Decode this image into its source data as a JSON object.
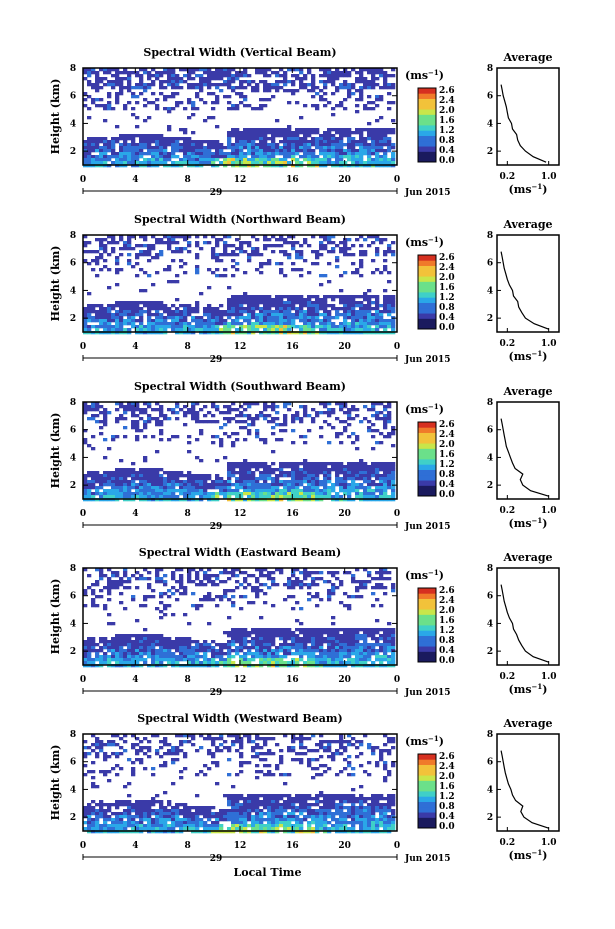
{
  "chart_data": {
    "type": "heatmap",
    "shared": {
      "ylabel": "Height (km)",
      "y_ticks": [
        "2",
        "4",
        "6",
        "8"
      ],
      "ylim": [
        1,
        8
      ],
      "x_ticks": [
        "0",
        "4",
        "8",
        "12",
        "16",
        "20",
        "0"
      ],
      "xlim": [
        0,
        24
      ],
      "date_label": "29",
      "month_label": "Jun 2015",
      "colorbar_unit_prefix": "(ms",
      "colorbar_unit_exp": "−1",
      "colorbar_unit_suffix": ")",
      "colorbar_ticks": [
        "0.0",
        "0.4",
        "0.8",
        "1.2",
        "1.6",
        "2.0",
        "2.4",
        "2.6"
      ],
      "avg_title": "Average",
      "avg_y_ticks": [
        "2",
        "4",
        "6",
        "8"
      ],
      "avg_x_ticks": [
        "0.2",
        "1.0"
      ],
      "avg_xlim": [
        0,
        1.2
      ],
      "avg_xlabel_prefix": "(ms",
      "avg_xlabel_exp": "−1",
      "avg_xlabel_suffix": ")",
      "xlabel": "Local Time",
      "colors": [
        "#1a1a5e",
        "#3a3aa8",
        "#2f6fd6",
        "#2aa7e8",
        "#3fd0c8",
        "#6be08a",
        "#c8e64a",
        "#f2c23a",
        "#f07a2a",
        "#d63020"
      ]
    },
    "panels": [
      {
        "title": "Spectral Width (Vertical Beam)",
        "average_profile": {
          "height": [
            1.2,
            1.6,
            2.0,
            2.4,
            2.8,
            3.2,
            3.6,
            4.0,
            4.4,
            4.8,
            5.2,
            5.6,
            6.0,
            6.4,
            6.8
          ],
          "value": [
            0.95,
            0.7,
            0.55,
            0.45,
            0.4,
            0.38,
            0.3,
            0.28,
            0.22,
            0.2,
            0.18,
            0.15,
            0.12,
            0.1,
            0.08
          ]
        }
      },
      {
        "title": "Spectral Width (Northward Beam)",
        "average_profile": {
          "height": [
            1.2,
            1.6,
            2.0,
            2.4,
            2.8,
            3.2,
            3.6,
            4.0,
            4.4,
            4.8,
            5.2,
            5.6,
            6.0,
            6.4,
            6.8
          ],
          "value": [
            1.0,
            0.72,
            0.55,
            0.48,
            0.42,
            0.4,
            0.32,
            0.3,
            0.24,
            0.2,
            0.17,
            0.14,
            0.12,
            0.1,
            0.08
          ]
        }
      },
      {
        "title": "Spectral Width (Southward Beam)",
        "average_profile": {
          "height": [
            1.2,
            1.6,
            2.0,
            2.4,
            2.8,
            3.2,
            3.6,
            4.0,
            4.4,
            4.8,
            5.2,
            5.6,
            6.0,
            6.4,
            6.8
          ],
          "value": [
            1.0,
            0.65,
            0.5,
            0.45,
            0.5,
            0.35,
            0.3,
            0.26,
            0.22,
            0.18,
            0.16,
            0.14,
            0.12,
            0.1,
            0.08
          ]
        }
      },
      {
        "title": "Spectral Width (Eastward Beam)",
        "average_profile": {
          "height": [
            1.2,
            1.6,
            2.0,
            2.4,
            2.8,
            3.2,
            3.6,
            4.0,
            4.4,
            4.8,
            5.2,
            5.6,
            6.0,
            6.4,
            6.8
          ],
          "value": [
            1.0,
            0.7,
            0.55,
            0.48,
            0.42,
            0.38,
            0.32,
            0.3,
            0.24,
            0.2,
            0.17,
            0.14,
            0.12,
            0.1,
            0.08
          ]
        }
      },
      {
        "title": "Spectral Width (Westward Beam)",
        "average_profile": {
          "height": [
            1.2,
            1.6,
            2.0,
            2.4,
            2.8,
            3.2,
            3.6,
            4.0,
            4.4,
            4.8,
            5.2,
            5.6,
            6.0,
            6.4,
            6.8
          ],
          "value": [
            1.0,
            0.68,
            0.52,
            0.46,
            0.5,
            0.36,
            0.3,
            0.27,
            0.22,
            0.19,
            0.16,
            0.14,
            0.12,
            0.1,
            0.08
          ]
        }
      }
    ]
  }
}
